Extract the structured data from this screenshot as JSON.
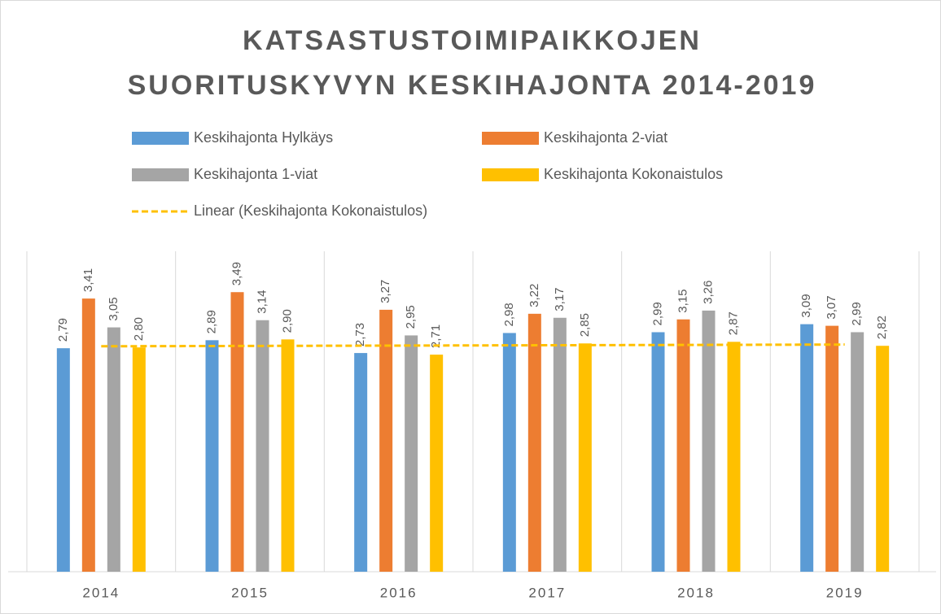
{
  "chart_data": {
    "type": "bar",
    "title": [
      "KATSASTUSTOIMIPAIKKOJEN",
      "SUORITUSKYVYN KESKIHAJONTA 2014-2019"
    ],
    "categories": [
      "2014",
      "2015",
      "2016",
      "2017",
      "2018",
      "2019"
    ],
    "series": [
      {
        "name": "Keskihajonta Hylkäys",
        "color": "#5b9bd5",
        "values": [
          2.79,
          2.89,
          2.73,
          2.98,
          2.99,
          3.09
        ],
        "value_labels": [
          "2,79",
          "2,89",
          "2,73",
          "2,98",
          "2,99",
          "3,09"
        ]
      },
      {
        "name": "Keskihajonta 2-viat",
        "color": "#ed7d31",
        "values": [
          3.41,
          3.49,
          3.27,
          3.22,
          3.15,
          3.07
        ],
        "value_labels": [
          "3,41",
          "3,49",
          "3,27",
          "3,22",
          "3,15",
          "3,07"
        ]
      },
      {
        "name": "Keskihajonta 1-viat",
        "color": "#a5a5a5",
        "values": [
          3.05,
          3.14,
          2.95,
          3.17,
          3.26,
          2.99
        ],
        "value_labels": [
          "3,05",
          "3,14",
          "2,95",
          "3,17",
          "3,26",
          "2,99"
        ]
      },
      {
        "name": "Keskihajonta Kokonaistulos",
        "color": "#ffc000",
        "values": [
          2.8,
          2.9,
          2.71,
          2.85,
          2.87,
          2.82
        ],
        "value_labels": [
          "2,80",
          "2,90",
          "2,71",
          "2,85",
          "2,87",
          "2,82"
        ]
      }
    ],
    "trendline": {
      "name": "Linear (Keskihajonta Kokonaistulos)",
      "type": "linear",
      "color": "#ffc000"
    },
    "ylim": [
      0,
      4
    ]
  }
}
